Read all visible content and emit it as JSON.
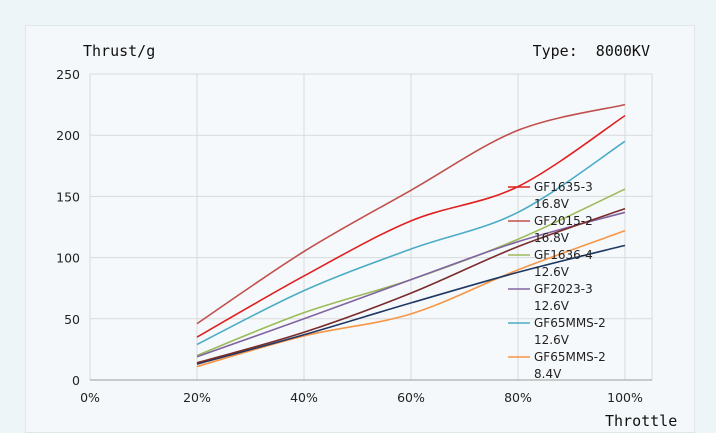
{
  "chart_data": {
    "type": "line",
    "title": "Type:  8000KV",
    "ylabel": "Thrust/g",
    "xlabel": "Throttle",
    "x": [
      20,
      40,
      60,
      80,
      100
    ],
    "x_tick_labels": [
      "0%",
      "20%",
      "40%",
      "60%",
      "80%",
      "100%"
    ],
    "x_ticks": [
      0,
      20,
      40,
      60,
      80,
      100
    ],
    "xlim": [
      0,
      100
    ],
    "y_ticks": [
      0,
      50,
      100,
      150,
      200,
      250
    ],
    "ylim": [
      0,
      250
    ],
    "grid": true,
    "legend_position": "right",
    "series": [
      {
        "name": "GF1635-3",
        "sub": "16.8V",
        "color": "#e02020",
        "values": [
          35,
          85,
          130,
          158,
          216
        ]
      },
      {
        "name": "GF2015-2",
        "sub": "16.8V",
        "color": "#c0504d",
        "values": [
          46,
          105,
          155,
          204,
          225
        ]
      },
      {
        "name": "GF1636-4",
        "sub": "12.6V",
        "color": "#9bbb59",
        "values": [
          20,
          55,
          82,
          115,
          156
        ]
      },
      {
        "name": "GF2023-3",
        "sub": "12.6V",
        "color": "#8064a2",
        "values": [
          19,
          50,
          82,
          113,
          137
        ]
      },
      {
        "name": "GF65MMS-2",
        "sub": "12.6V",
        "color": "#4bacc6",
        "values": [
          29,
          73,
          107,
          137,
          195
        ]
      },
      {
        "name": "GF65MMS-2",
        "sub": "8.4V",
        "color": "#f79646",
        "values": [
          11,
          36,
          54,
          90,
          122
        ]
      },
      {
        "name": "",
        "sub": "",
        "color": "#1f3864",
        "values": [
          13,
          37,
          63,
          88,
          110
        ]
      },
      {
        "name": "",
        "sub": "",
        "color": "#7b2c2c",
        "values": [
          14,
          39,
          71,
          109,
          140
        ]
      }
    ]
  }
}
